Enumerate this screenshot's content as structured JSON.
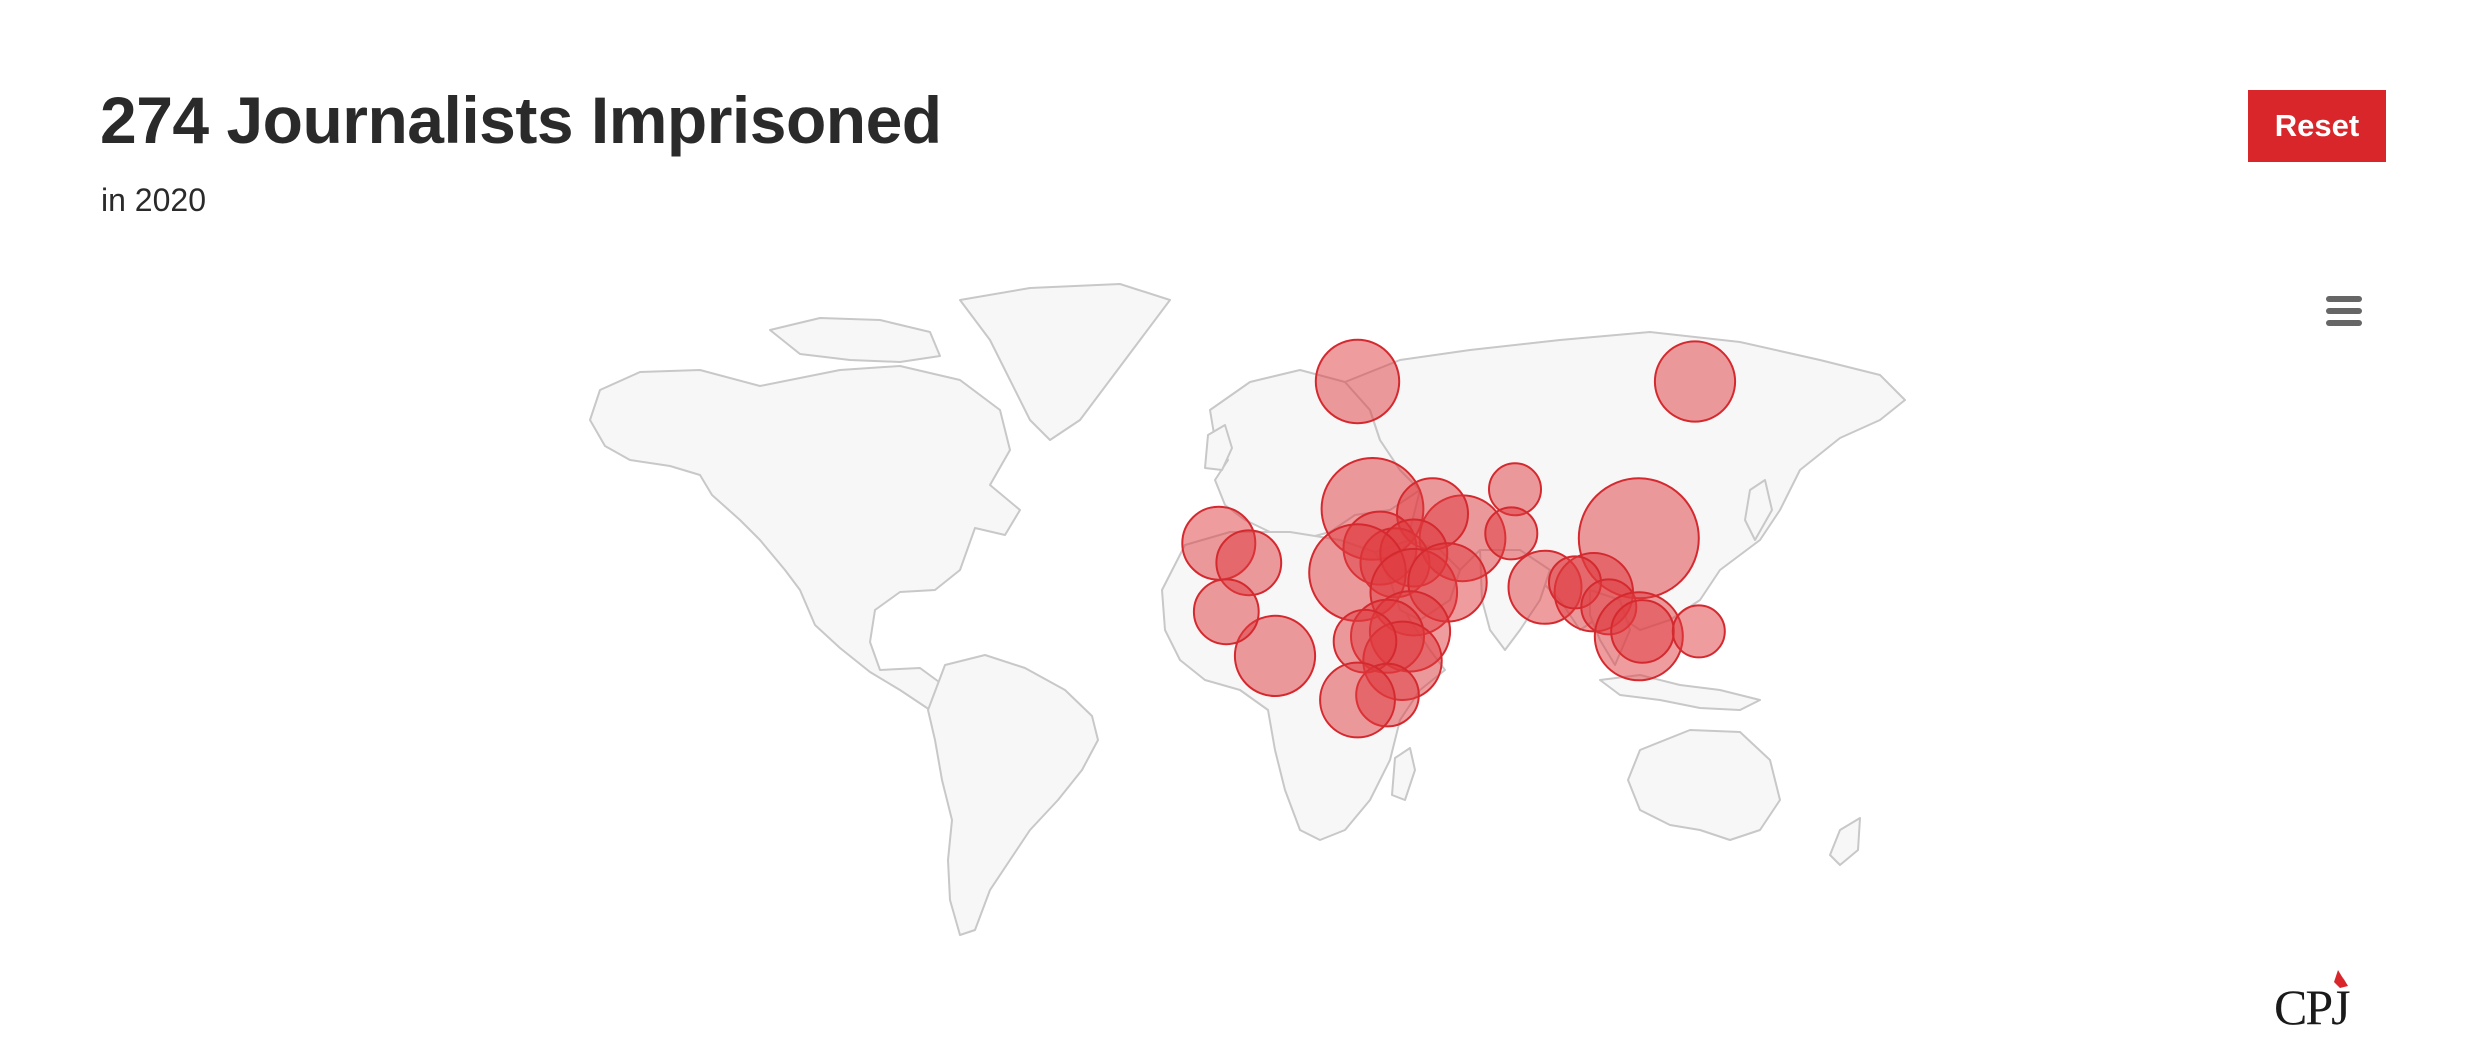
{
  "header": {
    "title": "274 Journalists Imprisoned",
    "subtitle": "in 2020"
  },
  "toolbar": {
    "reset_label": "Reset"
  },
  "map": {
    "land_color": "#f7f7f7",
    "border_color": "#c8c8c8",
    "bubble_fill": "#e0393e",
    "bubble_stroke": "#d42a2f",
    "bubbles": [
      {
        "lon": 30.0,
        "lat": 65.0,
        "size": 0.42
      },
      {
        "lon": 120.0,
        "lat": 65.0,
        "size": 0.38
      },
      {
        "lon": 34.0,
        "lat": 39.0,
        "size": 0.68
      },
      {
        "lon": 58.0,
        "lat": 33.0,
        "size": 0.45
      },
      {
        "lon": 50.0,
        "lat": 38.0,
        "size": 0.28
      },
      {
        "lon": 36.0,
        "lat": 31.0,
        "size": 0.3
      },
      {
        "lon": 40.0,
        "lat": 28.0,
        "size": 0.26
      },
      {
        "lon": 45.0,
        "lat": 30.0,
        "size": 0.24
      },
      {
        "lon": 30.0,
        "lat": 26.0,
        "size": 0.6
      },
      {
        "lon": 45.0,
        "lat": 22.0,
        "size": 0.46
      },
      {
        "lon": 54.0,
        "lat": 24.0,
        "size": 0.36
      },
      {
        "lon": 44.0,
        "lat": 14.0,
        "size": 0.38
      },
      {
        "lon": 38.0,
        "lat": 13.0,
        "size": 0.3
      },
      {
        "lon": 42.0,
        "lat": 8.0,
        "size": 0.36
      },
      {
        "lon": 32.0,
        "lat": 12.0,
        "size": 0.2
      },
      {
        "lon": 38.0,
        "lat": 1.0,
        "size": 0.2
      },
      {
        "lon": 30.0,
        "lat": 0.0,
        "size": 0.32
      },
      {
        "lon": 8.0,
        "lat": 9.0,
        "size": 0.38
      },
      {
        "lon": -7.0,
        "lat": 32.0,
        "size": 0.3
      },
      {
        "lon": 1.0,
        "lat": 28.0,
        "size": 0.22
      },
      {
        "lon": -5.0,
        "lat": 18.0,
        "size": 0.22
      },
      {
        "lon": 105.0,
        "lat": 33.0,
        "size": 1.0
      },
      {
        "lon": 72.0,
        "lat": 43.0,
        "size": 0.12
      },
      {
        "lon": 71.0,
        "lat": 34.0,
        "size": 0.12
      },
      {
        "lon": 80.0,
        "lat": 23.0,
        "size": 0.3
      },
      {
        "lon": 93.0,
        "lat": 22.0,
        "size": 0.36
      },
      {
        "lon": 88.0,
        "lat": 24.0,
        "size": 0.12
      },
      {
        "lon": 97.0,
        "lat": 19.0,
        "size": 0.14
      },
      {
        "lon": 105.0,
        "lat": 13.0,
        "size": 0.48
      },
      {
        "lon": 106.0,
        "lat": 14.0,
        "size": 0.2
      },
      {
        "lon": 121.0,
        "lat": 14.0,
        "size": 0.12
      }
    ]
  },
  "logo": {
    "text": "CPJ",
    "accent_color": "#d9262b"
  }
}
